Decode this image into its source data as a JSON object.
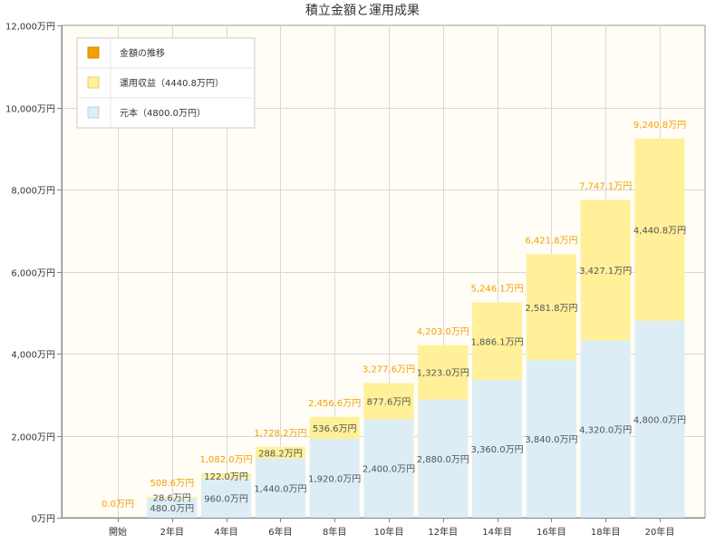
{
  "chart_data": {
    "type": "bar",
    "title": "積立金額と運用成果",
    "categories": [
      "開始",
      "2年目",
      "4年目",
      "6年目",
      "8年目",
      "10年目",
      "12年目",
      "14年目",
      "16年目",
      "18年目",
      "20年目"
    ],
    "series": [
      {
        "name": "元本（4800.0万円）",
        "color": "#dcedf5",
        "values": [
          0,
          480,
          960,
          1440,
          1920,
          2400,
          2880,
          3360,
          3840,
          4320,
          4800
        ],
        "labels": [
          "",
          "480.0万円",
          "960.0万円",
          "1,440.0万円",
          "1,920.0万円",
          "2,400.0万円",
          "2,880.0万円",
          "3,360.0万円",
          "3,840.0万円",
          "4,320.0万円",
          "4,800.0万円"
        ]
      },
      {
        "name": "運用収益（4440.8万円）",
        "color": "#fff099",
        "values": [
          0,
          28.6,
          122.0,
          288.2,
          536.6,
          877.6,
          1323.0,
          1886.1,
          2581.8,
          3427.1,
          4440.8
        ],
        "labels": [
          "",
          "28.6万円",
          "122.0万円",
          "288.2万円",
          "536.6万円",
          "877.6万円",
          "1,323.0万円",
          "1,886.1万円",
          "2,581.8万円",
          "3,427.1万円",
          "4,440.8万円"
        ]
      }
    ],
    "totals": {
      "name": "金額の推移",
      "color": "#f5a000",
      "values": [
        0,
        508.6,
        1082.0,
        1728.2,
        2456.6,
        3277.6,
        4203.0,
        5246.1,
        6421.8,
        7747.1,
        9240.8
      ],
      "labels": [
        "0.0万円",
        "508.6万円",
        "1,082.0万円",
        "1,728.2万円",
        "2,456.6万円",
        "3,277.6万円",
        "4,203.0万円",
        "5,246.1万円",
        "6,421.8万円",
        "7,747.1万円",
        "9,240.8万円"
      ]
    },
    "ylim": [
      0,
      12000
    ],
    "yticks": [
      0,
      2000,
      4000,
      6000,
      8000,
      10000,
      12000
    ],
    "ytick_labels": [
      "0万円",
      "2,000万円",
      "4,000万円",
      "6,000万円",
      "8,000万円",
      "10,000万円",
      "12,000万円"
    ],
    "xlabel": "",
    "ylabel": "",
    "grid": true,
    "legend_position": "top-left",
    "stacked": true
  }
}
